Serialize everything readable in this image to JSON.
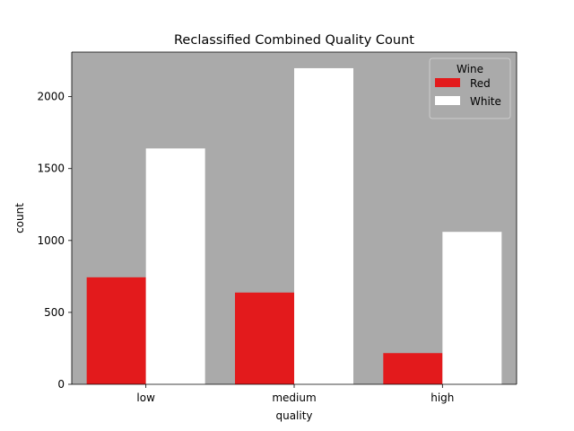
{
  "chart_data": {
    "type": "bar",
    "title": "Reclassified Combined Quality Count",
    "xlabel": "quality",
    "ylabel": "count",
    "categories": [
      "low",
      "medium",
      "high"
    ],
    "series": [
      {
        "name": "Red",
        "values": [
          744,
          638,
          217
        ],
        "color": "#e31a1c"
      },
      {
        "name": "White",
        "values": [
          1640,
          2198,
          1060
        ],
        "color": "#ffffff"
      }
    ],
    "ylim": [
      0,
      2310
    ],
    "yticks": [
      0,
      500,
      1000,
      1500,
      2000
    ],
    "legend": {
      "title": "Wine",
      "position": "top-right"
    },
    "grid": false,
    "plot_background": "#aaaaaa"
  }
}
